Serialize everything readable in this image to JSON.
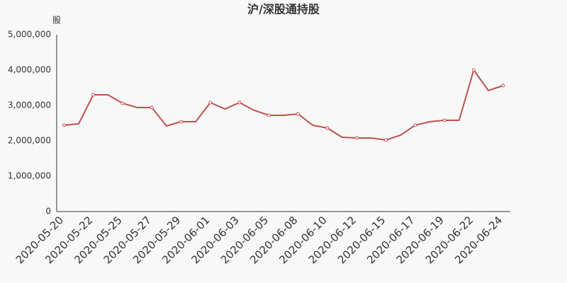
{
  "chart_data": {
    "type": "line",
    "title": "沪/深股通持股",
    "y_label": "股",
    "categories": [
      "2020-05-20",
      null,
      "2020-05-22",
      null,
      "2020-05-25",
      null,
      "2020-05-27",
      null,
      "2020-05-29",
      null,
      "2020-06-01",
      null,
      "2020-06-03",
      null,
      "2020-06-05",
      null,
      "2020-06-08",
      null,
      "2020-06-10",
      null,
      "2020-06-12",
      null,
      "2020-06-15",
      null,
      "2020-06-17",
      null,
      "2020-06-19",
      null,
      "2020-06-22",
      null,
      "2020-06-24"
    ],
    "series": [
      {
        "name": "沪/深股通持股",
        "color": "#c0504d",
        "values": [
          2440000,
          2480000,
          3300000,
          3300000,
          3060000,
          2940000,
          2940000,
          2420000,
          2540000,
          2540000,
          3080000,
          2900000,
          3080000,
          2860000,
          2720000,
          2720000,
          2760000,
          2440000,
          2360000,
          2100000,
          2080000,
          2080000,
          2020000,
          2160000,
          2440000,
          2540000,
          2580000,
          2580000,
          4000000,
          3420000,
          3560000
        ]
      }
    ],
    "ylim": [
      0,
      5000000
    ],
    "yticks": [
      0,
      {
        "value": 1000000,
        "label": "1,000,000"
      },
      {
        "value": 2000000,
        "label": "2,000,000"
      },
      {
        "value": 3000000,
        "label": "3,000,000"
      },
      {
        "value": 4000000,
        "label": "4,000,000"
      },
      {
        "value": 5000000,
        "label": "5,000,000"
      }
    ],
    "grid": false
  }
}
